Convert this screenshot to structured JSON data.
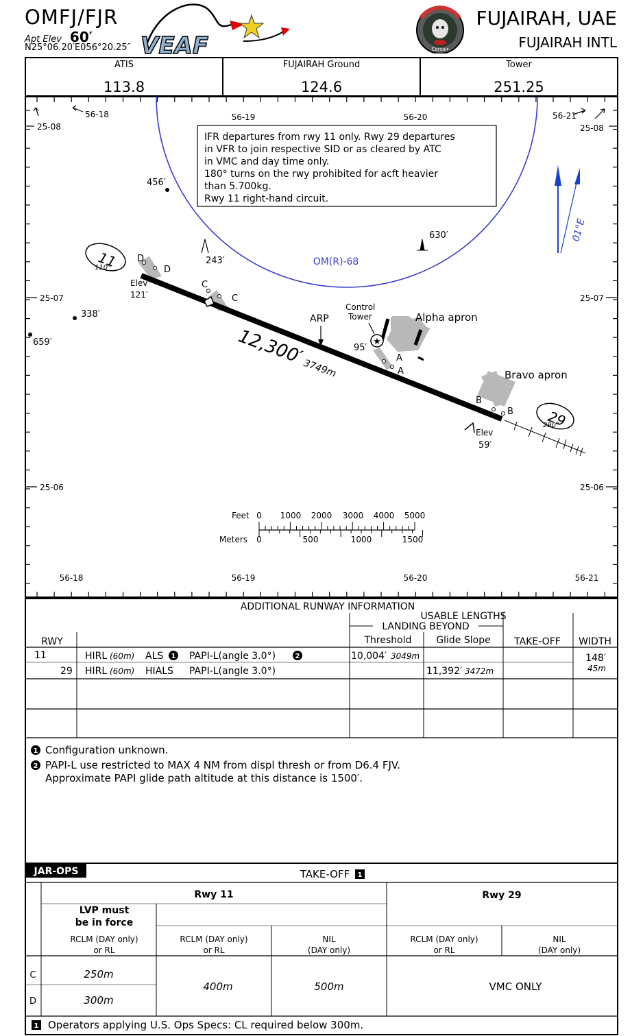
{
  "header": {
    "code": "OMFJ/FJR",
    "apt_elev_label": "Apt Elev",
    "apt_elev_value": "60′",
    "coords": "N25°06.20′E056°20.25″",
    "city": "FUJAIRAH, UAE",
    "airport": "FUJAIRAH INTL",
    "logo_text": "VEAF",
    "badge_text": "Corsair"
  },
  "frequencies": [
    {
      "label": "ATIS",
      "value": "113.8"
    },
    {
      "label": "FUJAIRAH Ground",
      "value": "124.6"
    },
    {
      "label": "Tower",
      "value": "251.25"
    }
  ],
  "chart": {
    "lon_labels_top": [
      "56-18",
      "56-19",
      "56-20",
      "56-21"
    ],
    "lon_labels_bottom": [
      "56-18",
      "56-19",
      "56-20",
      "56-21"
    ],
    "lat_labels": [
      "25-08",
      "25-07",
      "25-06"
    ],
    "notice_lines": [
      "IFR departures from rwy 11 only. Rwy 29 departures",
      "in VFR to join respective SID or as cleared by ATC",
      "in VMC and day time only.",
      "180° turns on the rwy prohibited for acft heavier",
      "than 5.700kg.",
      "Rwy 11 right-hand circuit."
    ],
    "restricted_area": "OM(R)-68",
    "variation": "01°E",
    "obstacles": {
      "o456": "456′",
      "o243": "243′",
      "o630": "630′",
      "o338": "338′",
      "o659": "659′"
    },
    "rwy11": {
      "number": "11",
      "heading": "110°",
      "elev_label": "Elev",
      "elev_value": "121′"
    },
    "rwy29": {
      "number": "29",
      "heading": "290°",
      "elev_label": "Elev",
      "elev_value": "59′"
    },
    "length_ft": "12,300′",
    "length_m": "3749m",
    "arp": "ARP",
    "tower_label_1": "Control",
    "tower_label_2": "Tower",
    "tower_height": "95′",
    "alpha_apron": "Alpha apron",
    "bravo_apron": "Bravo apron",
    "taxiways": {
      "D": "D",
      "C": "C",
      "A": "A",
      "B": "B"
    },
    "scale": {
      "feet_label": "Feet",
      "feet_ticks": [
        "0",
        "1000",
        "2000",
        "3000",
        "4000",
        "5000"
      ],
      "meters_label": "Meters",
      "meters_ticks": [
        "0",
        "500",
        "1000",
        "1500"
      ]
    }
  },
  "runway_info": {
    "title": "ADDITIONAL RUNWAY INFORMATION",
    "usable_lengths": "USABLE LENGTHS",
    "landing_beyond": "LANDING BEYOND",
    "headers": {
      "rwy": "RWY",
      "threshold": "Threshold",
      "glide_slope": "Glide Slope",
      "takeoff": "TAKE-OFF",
      "width": "WIDTH"
    },
    "rows": [
      {
        "rwy": "11",
        "hirl": "HIRL",
        "hirl_len": "(60m)",
        "als": "ALS",
        "papi": "PAPI-L(angle 3.0°)",
        "threshold_ft": "10,004′",
        "threshold_m": "3049m",
        "glide_ft": "",
        "glide_m": "",
        "width_ft": "148′",
        "width_m": "45m"
      },
      {
        "rwy": "29",
        "hirl": "HIRL",
        "hirl_len": "(60m)",
        "als": "HIALS",
        "papi": "PAPI-L(angle 3.0°)",
        "threshold_ft": "",
        "threshold_m": "",
        "glide_ft": "11,392′",
        "glide_m": "3472m",
        "width_ft": "",
        "width_m": ""
      }
    ],
    "note1_marker": "1",
    "note2_marker": "2",
    "note1": "Configuration unknown.",
    "note2_line1": "PAPI-L use restricted to MAX 4 NM from displ thresh or from D6.4 FJV.",
    "note2_line2": "Approximate PAPI glide path altitude at this distance is 1500′."
  },
  "takeoff": {
    "jar_ops": "JAR-OPS",
    "title": "TAKE-OFF",
    "marker": "1",
    "rwy11": "Rwy 11",
    "rwy29": "Rwy 29",
    "lvp_line1": "LVP must",
    "lvp_line2": "be in force",
    "rclm_line1": "RCLM (DAY only)",
    "rclm_line2": "or RL",
    "nil_line1": "NIL",
    "nil_line2": "(DAY only)",
    "row_c": "C",
    "row_d": "D",
    "c_lvp": "250m",
    "d_lvp": "300m",
    "rclm_val": "400m",
    "nil_val": "500m",
    "vmc": "VMC ONLY",
    "footnote": "Operators applying U.S. Ops Specs: CL required below 300m."
  }
}
